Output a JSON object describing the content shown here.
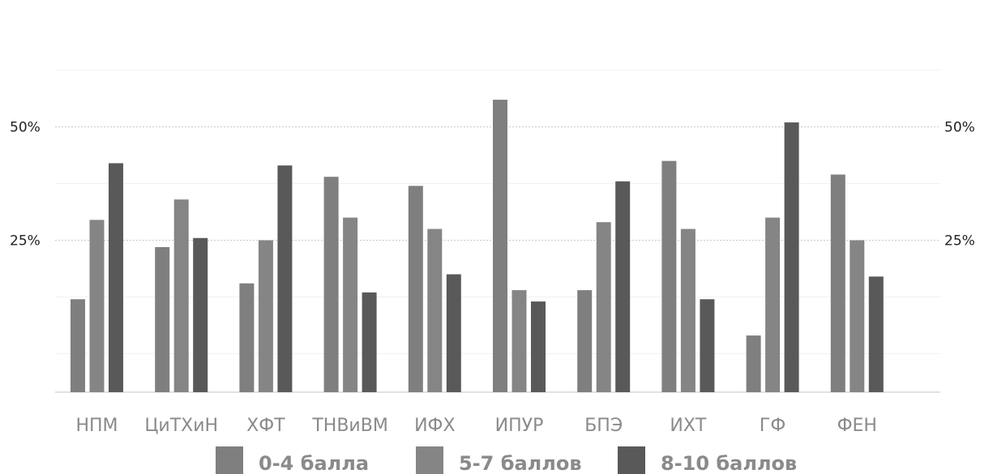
{
  "chart_data": {
    "type": "bar",
    "categories": [
      "НПМ",
      "ЦиТХиН",
      "ХФТ",
      "ТНВиВМ",
      "ИФХ",
      "ИПУР",
      "БПЭ",
      "ИХТ",
      "ГФ",
      "ФЕН"
    ],
    "series": [
      {
        "name": "0-4 балла",
        "color": "#7f7f7f",
        "values": [
          12,
          23.5,
          15.5,
          39,
          37,
          56,
          14,
          42.5,
          4,
          39.5
        ]
      },
      {
        "name": "5-7 баллов",
        "color": "#858585",
        "values": [
          29.5,
          34,
          25,
          30,
          27.5,
          14,
          29,
          27.5,
          30,
          25
        ]
      },
      {
        "name": "8-10 баллов",
        "color": "#595959",
        "values": [
          42,
          25.5,
          41.5,
          13.5,
          17.5,
          11.5,
          38,
          12,
          51,
          17
        ]
      }
    ],
    "y_ticks": [
      {
        "value": 25,
        "label": "25%"
      },
      {
        "value": 50,
        "label": "50%"
      }
    ],
    "ylim": [
      -8.5,
      78
    ],
    "xlabel": "",
    "ylabel": "",
    "grid": true,
    "legend": "bottom"
  }
}
